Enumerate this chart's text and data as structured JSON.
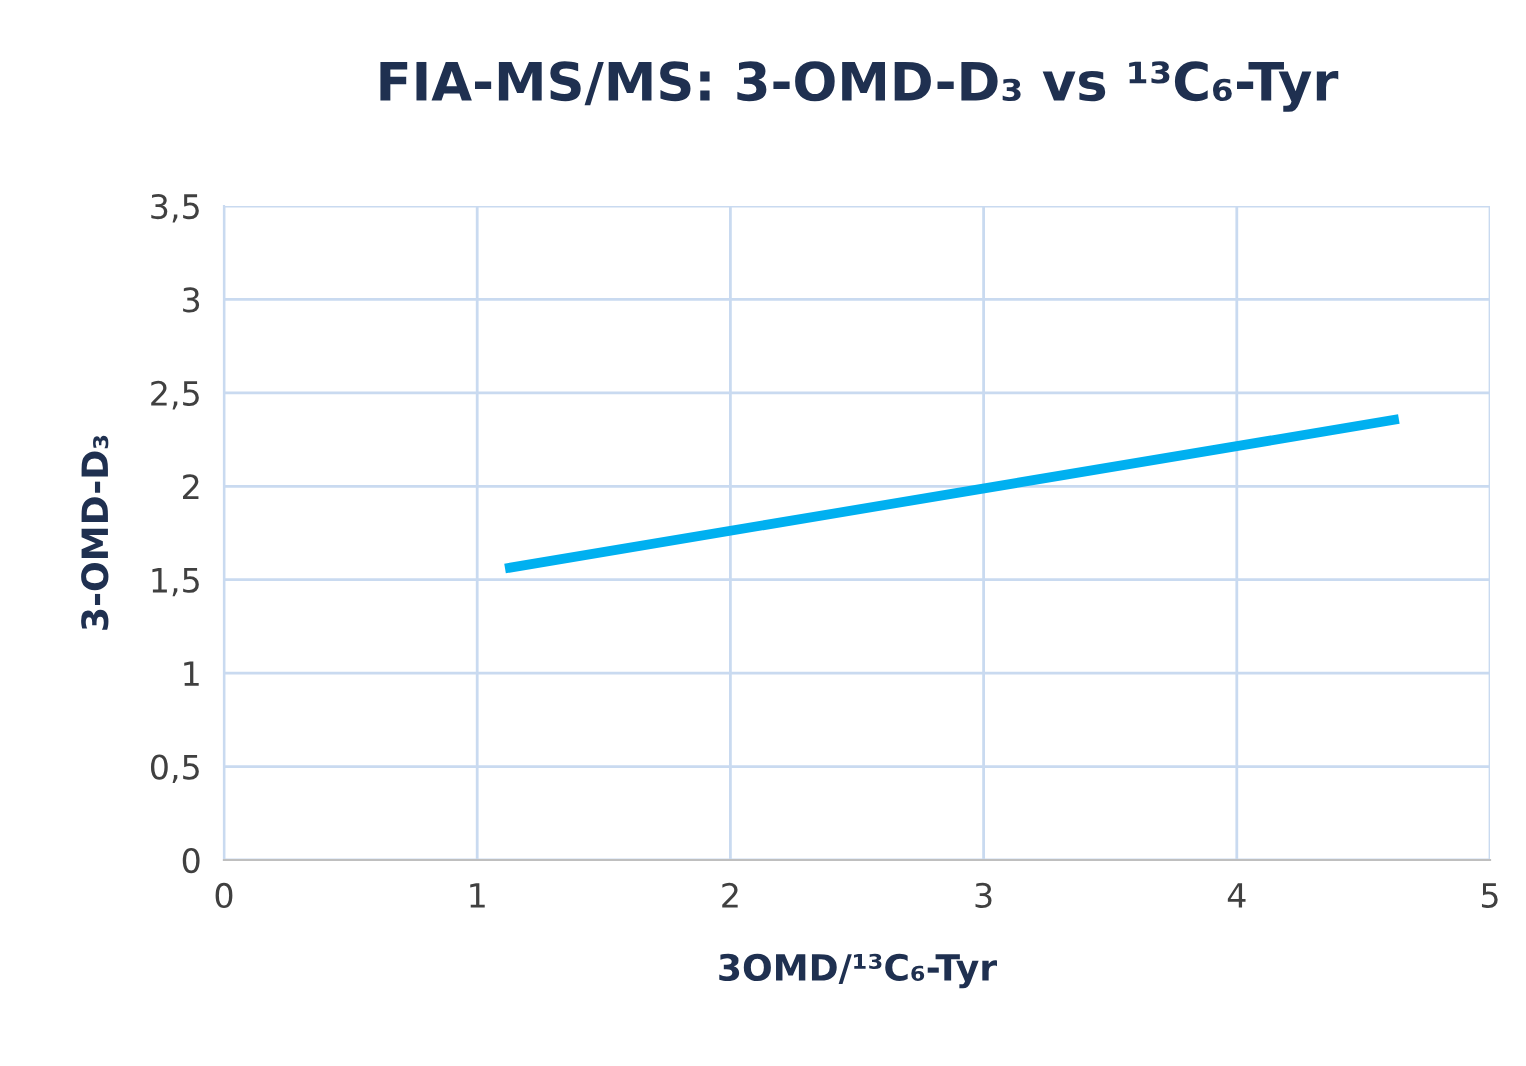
{
  "chart_data": {
    "type": "line",
    "title": "FIA-MS/MS: 3-OMD-D₃ vs ¹³C₆-Tyr",
    "xlabel": "3OMD/¹³C₆-Tyr",
    "ylabel": "3-OMD-D₃",
    "series": [
      {
        "color": "#00b0f0",
        "x": [
          1.11,
          4.64
        ],
        "values": [
          1.56,
          2.36
        ]
      }
    ],
    "xlim": [
      0,
      5
    ],
    "xticks": [
      0,
      1,
      2,
      3,
      4,
      5
    ],
    "ylim": [
      0,
      3.5
    ],
    "yticks": [
      0,
      {
        "value": 0.5,
        "label": "0,5"
      },
      1,
      {
        "value": 1.5,
        "label": "1,5"
      },
      2,
      {
        "value": 2.5,
        "label": "2,5"
      },
      3,
      {
        "value": 3.5,
        "label": "3,5"
      }
    ],
    "grid": true,
    "marker": "none",
    "line_style": "solid"
  }
}
